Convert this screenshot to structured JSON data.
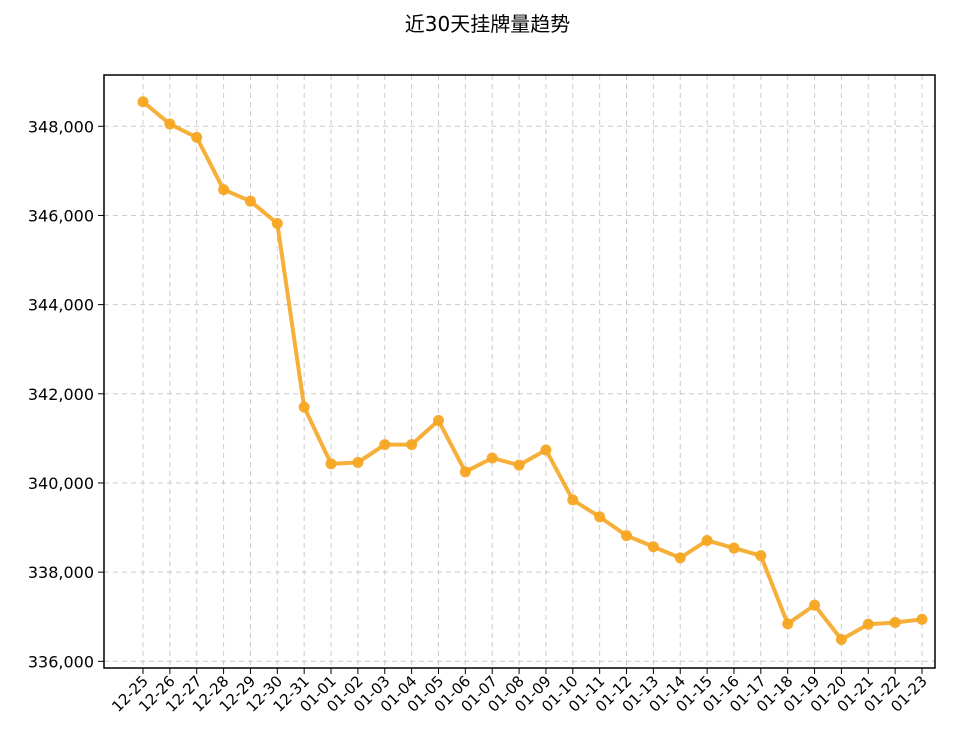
{
  "chart_data": {
    "type": "line",
    "title": "近30天挂牌量趋势",
    "xlabel": "",
    "ylabel": "",
    "categories": [
      "12-25",
      "12-26",
      "12-27",
      "12-28",
      "12-29",
      "12-30",
      "12-31",
      "01-01",
      "01-02",
      "01-03",
      "01-04",
      "01-05",
      "01-06",
      "01-07",
      "01-08",
      "01-09",
      "01-10",
      "01-11",
      "01-12",
      "01-13",
      "01-14",
      "01-15",
      "01-16",
      "01-17",
      "01-18",
      "01-19",
      "01-20",
      "01-21",
      "01-22",
      "01-23"
    ],
    "series": [
      {
        "values": [
          348550,
          348050,
          347750,
          346580,
          346320,
          345820,
          341700,
          340430,
          340460,
          340860,
          340860,
          341400,
          340250,
          340560,
          340400,
          340740,
          339620,
          339240,
          338820,
          338570,
          338320,
          338710,
          338540,
          338370,
          336840,
          337260,
          336490,
          336830,
          336870,
          336940
        ]
      }
    ],
    "ylim": [
      335850,
      349150
    ],
    "yticks": [
      336000,
      338000,
      340000,
      342000,
      344000,
      346000,
      348000
    ],
    "ytick_labels": [
      "336,000",
      "338,000",
      "340,000",
      "342,000",
      "344,000",
      "346,000",
      "348,000"
    ],
    "grid": true,
    "legend": "none",
    "colors": {
      "line": "#F5A623",
      "grid": "#cccccc",
      "axis": "#000000"
    }
  }
}
